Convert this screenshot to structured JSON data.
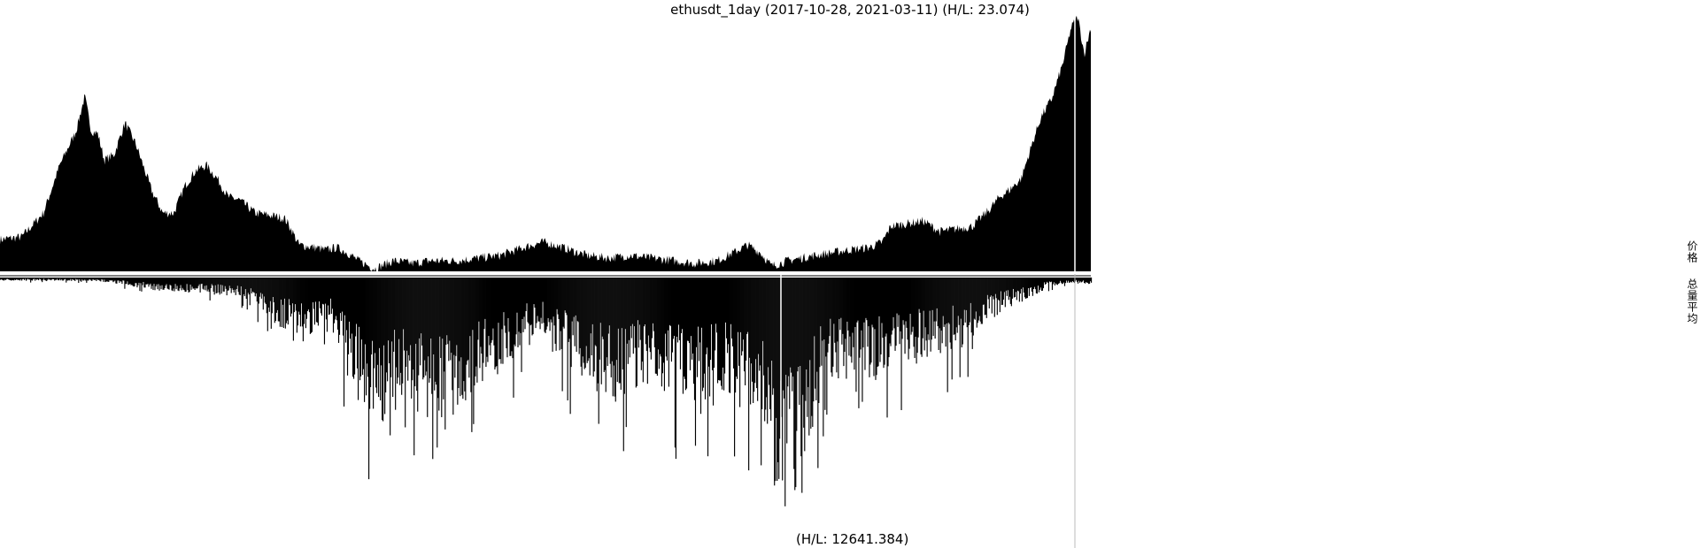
{
  "chart_data": {
    "type": "area",
    "title": "ethusdt_1day (2017-10-28, 2021-03-11) (H/L: 23.074)",
    "date_range": [
      "2017-10-28",
      "2021-03-11"
    ],
    "series": [
      {
        "panel": "top",
        "hl_ratio": 23.074,
        "keypoints": [
          [
            0,
            0.12
          ],
          [
            20,
            0.13
          ],
          [
            40,
            0.22
          ],
          [
            55,
            0.4
          ],
          [
            70,
            0.53
          ],
          [
            78,
            0.66
          ],
          [
            84,
            0.53
          ],
          [
            90,
            0.52
          ],
          [
            96,
            0.42
          ],
          [
            105,
            0.44
          ],
          [
            115,
            0.56
          ],
          [
            125,
            0.48
          ],
          [
            140,
            0.3
          ],
          [
            150,
            0.22
          ],
          [
            160,
            0.22
          ],
          [
            170,
            0.32
          ],
          [
            180,
            0.38
          ],
          [
            190,
            0.4
          ],
          [
            200,
            0.35
          ],
          [
            210,
            0.28
          ],
          [
            220,
            0.27
          ],
          [
            235,
            0.22
          ],
          [
            250,
            0.21
          ],
          [
            262,
            0.2
          ],
          [
            268,
            0.16
          ],
          [
            275,
            0.1
          ],
          [
            290,
            0.09
          ],
          [
            300,
            0.08
          ],
          [
            310,
            0.09
          ],
          [
            320,
            0.07
          ],
          [
            330,
            0.04
          ],
          [
            345,
            0.01
          ],
          [
            362,
            0.04
          ],
          [
            380,
            0.03
          ],
          [
            395,
            0.04
          ],
          [
            420,
            0.04
          ],
          [
            440,
            0.05
          ],
          [
            460,
            0.06
          ],
          [
            475,
            0.08
          ],
          [
            490,
            0.1
          ],
          [
            500,
            0.11
          ],
          [
            510,
            0.1
          ],
          [
            525,
            0.08
          ],
          [
            540,
            0.06
          ],
          [
            560,
            0.05
          ],
          [
            580,
            0.06
          ],
          [
            600,
            0.05
          ],
          [
            620,
            0.04
          ],
          [
            640,
            0.03
          ],
          [
            660,
            0.04
          ],
          [
            675,
            0.07
          ],
          [
            688,
            0.1
          ],
          [
            700,
            0.07
          ],
          [
            710,
            0.02
          ],
          [
            725,
            0.04
          ],
          [
            750,
            0.06
          ],
          [
            780,
            0.08
          ],
          [
            800,
            0.09
          ],
          [
            812,
            0.11
          ],
          [
            820,
            0.17
          ],
          [
            835,
            0.18
          ],
          [
            850,
            0.19
          ],
          [
            865,
            0.15
          ],
          [
            880,
            0.16
          ],
          [
            895,
            0.17
          ],
          [
            910,
            0.23
          ],
          [
            920,
            0.28
          ],
          [
            930,
            0.31
          ],
          [
            940,
            0.35
          ],
          [
            950,
            0.48
          ],
          [
            958,
            0.58
          ],
          [
            968,
            0.65
          ],
          [
            978,
            0.78
          ],
          [
            986,
            0.92
          ],
          [
            992,
            0.96
          ],
          [
            998,
            0.82
          ],
          [
            1004,
            0.92
          ]
        ]
      },
      {
        "panel": "bottom",
        "hl_ratio": 12641.384,
        "keypoints": [
          [
            0,
            0.01
          ],
          [
            60,
            0.01
          ],
          [
            100,
            0.015
          ],
          [
            140,
            0.04
          ],
          [
            180,
            0.05
          ],
          [
            220,
            0.06
          ],
          [
            240,
            0.1
          ],
          [
            255,
            0.16
          ],
          [
            270,
            0.18
          ],
          [
            290,
            0.18
          ],
          [
            305,
            0.17
          ],
          [
            318,
            0.28
          ],
          [
            330,
            0.4
          ],
          [
            350,
            0.46
          ],
          [
            370,
            0.4
          ],
          [
            390,
            0.44
          ],
          [
            410,
            0.48
          ],
          [
            425,
            0.42
          ],
          [
            440,
            0.34
          ],
          [
            460,
            0.3
          ],
          [
            480,
            0.22
          ],
          [
            500,
            0.2
          ],
          [
            520,
            0.26
          ],
          [
            545,
            0.36
          ],
          [
            560,
            0.4
          ],
          [
            580,
            0.34
          ],
          [
            600,
            0.38
          ],
          [
            625,
            0.36
          ],
          [
            645,
            0.4
          ],
          [
            660,
            0.36
          ],
          [
            680,
            0.38
          ],
          [
            700,
            0.44
          ],
          [
            712,
            0.66
          ],
          [
            722,
            0.78
          ],
          [
            733,
            0.72
          ],
          [
            745,
            0.52
          ],
          [
            760,
            0.34
          ],
          [
            780,
            0.33
          ],
          [
            800,
            0.34
          ],
          [
            820,
            0.29
          ],
          [
            845,
            0.26
          ],
          [
            865,
            0.24
          ],
          [
            885,
            0.22
          ],
          [
            905,
            0.15
          ],
          [
            925,
            0.1
          ],
          [
            945,
            0.07
          ],
          [
            965,
            0.03
          ],
          [
            985,
            0.02
          ],
          [
            1004,
            0.02
          ]
        ]
      }
    ],
    "bottom_label": "(H/L: 12641.384)",
    "legend": [
      "价格",
      "总量平均"
    ],
    "grid": false
  }
}
